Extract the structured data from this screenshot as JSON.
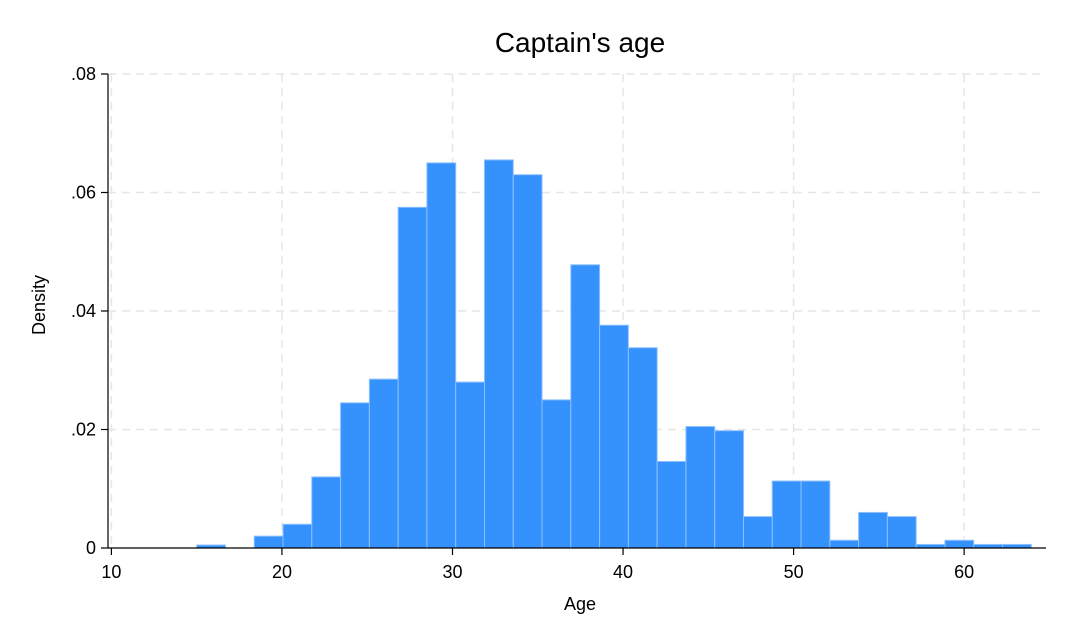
{
  "chart_data": {
    "type": "bar",
    "title": "Captain's age",
    "xlabel": "Age",
    "ylabel": "Density",
    "xlim": [
      9.8,
      64.8
    ],
    "ylim": [
      0,
      0.08
    ],
    "x_ticks": [
      10,
      20,
      30,
      40,
      50,
      60
    ],
    "y_ticks": [
      0,
      0.02,
      0.04,
      0.06,
      0.08
    ],
    "y_tick_labels": [
      "0",
      ".02",
      ".04",
      ".06",
      ".08"
    ],
    "grid": true,
    "bin_width": 1.6875,
    "bin_starts": [
      15,
      18.375,
      20.0625,
      21.75,
      23.4375,
      25.125,
      26.8125,
      28.5,
      30.1875,
      31.875,
      33.5625,
      35.25,
      36.9375,
      38.625,
      40.3125,
      42.0,
      43.6875,
      45.375,
      47.0625,
      48.75,
      50.4375,
      52.125,
      53.8125,
      55.5,
      57.1875,
      58.875,
      60.5625,
      62.25
    ],
    "values": [
      0.0005,
      0.002,
      0.004,
      0.012,
      0.0245,
      0.0285,
      0.0575,
      0.065,
      0.028,
      0.0655,
      0.063,
      0.025,
      0.0478,
      0.0376,
      0.0338,
      0.0146,
      0.0205,
      0.0198,
      0.0053,
      0.0113,
      0.0113,
      0.0013,
      0.006,
      0.0053,
      0.0006,
      0.0013,
      0.0006,
      0.0006
    ]
  }
}
